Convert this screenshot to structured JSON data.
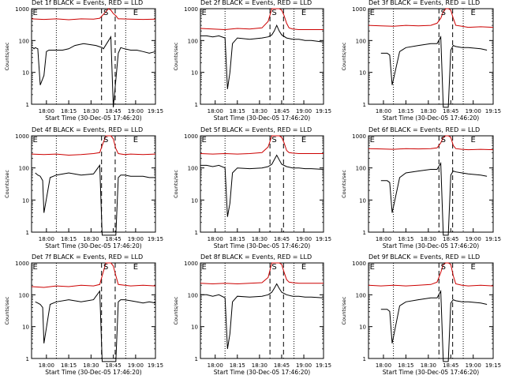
{
  "colors": {
    "events": "#000000",
    "lld": "#cc0000",
    "axis": "#000000"
  },
  "chart_data": [
    {
      "type": "line",
      "title": "Det 1f BLACK = Events, RED = LLD",
      "xlabel": "Start Time (30-Dec-05 17:46:20)",
      "ylabel": "Counts/sec",
      "y_scale": "log",
      "ylim": [
        1,
        1000
      ],
      "x_ticks": [
        "18:00",
        "18:15",
        "18:30",
        "18:45",
        "19:00",
        "19:15"
      ],
      "y_ticks": [
        "1",
        "10",
        "100",
        "1000"
      ],
      "markers": [
        "E",
        "S",
        "E"
      ],
      "series": [
        {
          "name": "Events",
          "color": "#000000",
          "x": [
            0,
            0.01,
            0.02,
            0.03,
            0.05,
            0.07,
            0.1,
            0.12,
            0.14,
            0.25,
            0.3,
            0.35,
            0.42,
            0.52,
            0.57,
            0.58,
            0.64,
            0.66,
            0.66,
            0.7,
            0.72,
            0.75,
            0.8,
            0.85,
            0.9,
            0.95,
            1.0
          ],
          "y": [
            60,
            60,
            55,
            60,
            55,
            4,
            8,
            45,
            50,
            50,
            55,
            70,
            80,
            70,
            60,
            55,
            130,
            0,
            0,
            40,
            60,
            55,
            50,
            50,
            45,
            40,
            45
          ]
        },
        {
          "name": "LLD",
          "color": "#cc0000",
          "x": [
            0,
            0.1,
            0.2,
            0.3,
            0.4,
            0.5,
            0.55,
            0.57,
            0.6,
            0.62,
            0.64,
            0.66,
            0.68,
            0.7,
            0.72,
            0.8,
            0.9,
            1.0
          ],
          "y": [
            480,
            460,
            480,
            450,
            480,
            470,
            500,
            600,
            800,
            1000,
            900,
            700,
            600,
            480,
            480,
            470,
            460,
            470
          ]
        }
      ]
    },
    {
      "type": "line",
      "title": "Det 2f BLACK = Events, RED = LLD",
      "xlabel": "Start Time (30-Dec-05 17:46:20)",
      "ylabel": "Counts/sec",
      "y_scale": "log",
      "ylim": [
        1,
        1000
      ],
      "x_ticks": [
        "18:00",
        "18:15",
        "18:30",
        "18:45",
        "19:00",
        "19:15"
      ],
      "y_ticks": [
        "1",
        "10",
        "100",
        "1000"
      ],
      "markers": [
        "E",
        "S",
        "E"
      ],
      "series": [
        {
          "name": "Events",
          "color": "#000000",
          "x": [
            0,
            0.05,
            0.1,
            0.15,
            0.2,
            0.22,
            0.24,
            0.26,
            0.3,
            0.4,
            0.5,
            0.55,
            0.58,
            0.6,
            0.62,
            0.64,
            0.66,
            0.7,
            0.75,
            0.8,
            0.85,
            0.9,
            1.0
          ],
          "y": [
            140,
            140,
            130,
            140,
            120,
            3,
            10,
            80,
            120,
            110,
            120,
            130,
            150,
            200,
            300,
            200,
            150,
            120,
            110,
            110,
            100,
            100,
            90
          ]
        },
        {
          "name": "LLD",
          "color": "#cc0000",
          "x": [
            0,
            0.1,
            0.2,
            0.3,
            0.4,
            0.5,
            0.55,
            0.58,
            0.6,
            0.62,
            0.64,
            0.66,
            0.68,
            0.7,
            0.72,
            0.75,
            0.8,
            0.9,
            1.0
          ],
          "y": [
            240,
            230,
            220,
            240,
            230,
            250,
            400,
            1000,
            1000,
            1000,
            1000,
            900,
            600,
            350,
            250,
            230,
            220,
            220,
            220
          ]
        }
      ]
    },
    {
      "type": "line",
      "title": "Det 3f BLACK = Events, RED = LLD",
      "xlabel": "Start Time (30-Dec-05 17:46:20)",
      "ylabel": "Counts/sec",
      "y_scale": "log",
      "ylim": [
        1,
        1000
      ],
      "x_ticks": [
        "18:00",
        "18:15",
        "18:30",
        "18:45",
        "19:00",
        "19:15"
      ],
      "y_ticks": [
        "1",
        "10",
        "100",
        "1000"
      ],
      "markers": [
        "E",
        "S",
        "E"
      ],
      "series": [
        {
          "name": "Events",
          "color": "#000000",
          "x": [
            0.1,
            0.15,
            0.17,
            0.19,
            0.25,
            0.3,
            0.4,
            0.5,
            0.55,
            0.58,
            0.6,
            0.64,
            0.66,
            0.68,
            0.7,
            0.75,
            0.8,
            0.9,
            0.95
          ],
          "y": [
            40,
            40,
            35,
            4,
            45,
            60,
            70,
            80,
            80,
            130,
            0,
            0,
            50,
            70,
            65,
            60,
            60,
            55,
            50
          ]
        },
        {
          "name": "LLD",
          "color": "#cc0000",
          "x": [
            0,
            0.1,
            0.2,
            0.3,
            0.4,
            0.5,
            0.55,
            0.58,
            0.6,
            0.62,
            0.64,
            0.66,
            0.68,
            0.7,
            0.75,
            0.8,
            0.9,
            1.0
          ],
          "y": [
            300,
            290,
            280,
            300,
            290,
            300,
            350,
            500,
            800,
            1000,
            1000,
            900,
            500,
            300,
            280,
            260,
            270,
            260
          ]
        }
      ]
    },
    {
      "type": "line",
      "title": "Det 4f BLACK = Events, RED = LLD",
      "xlabel": "Start Time (30-Dec-05 17:46:20)",
      "ylabel": "Counts/sec",
      "y_scale": "log",
      "ylim": [
        1,
        1000
      ],
      "x_ticks": [
        "18:00",
        "18:15",
        "18:30",
        "18:45",
        "19:00",
        "19:15"
      ],
      "y_ticks": [
        "1",
        "10",
        "100",
        "1000"
      ],
      "markers": [
        "E",
        "S",
        "E"
      ],
      "series": [
        {
          "name": "Events",
          "color": "#000000",
          "x": [
            0.03,
            0.05,
            0.07,
            0.09,
            0.1,
            0.15,
            0.2,
            0.3,
            0.4,
            0.5,
            0.55,
            0.57,
            0.58,
            0.62,
            0.66,
            0.68,
            0.7,
            0.72,
            0.75,
            0.8,
            0.85,
            0.9,
            0.95,
            1.0
          ],
          "y": [
            70,
            60,
            55,
            40,
            4,
            50,
            60,
            70,
            60,
            65,
            120,
            0,
            0,
            0,
            0,
            0,
            50,
            60,
            60,
            55,
            55,
            55,
            50,
            50
          ]
        },
        {
          "name": "LLD",
          "color": "#cc0000",
          "x": [
            0,
            0.1,
            0.2,
            0.3,
            0.4,
            0.5,
            0.55,
            0.57,
            0.6,
            0.62,
            0.64,
            0.66,
            0.68,
            0.7,
            0.75,
            0.8,
            0.9,
            1.0
          ],
          "y": [
            270,
            260,
            270,
            250,
            260,
            280,
            300,
            500,
            1000,
            1000,
            1000,
            800,
            400,
            280,
            260,
            270,
            260,
            270
          ]
        }
      ]
    },
    {
      "type": "line",
      "title": "Det 5f BLACK = Events, RED = LLD",
      "xlabel": "Start Time (30-Dec-05 17:46:20)",
      "ylabel": "Counts/sec",
      "y_scale": "log",
      "ylim": [
        1,
        1000
      ],
      "x_ticks": [
        "18:00",
        "18:15",
        "18:30",
        "18:45",
        "19:00",
        "19:15"
      ],
      "y_ticks": [
        "1",
        "10",
        "100",
        "1000"
      ],
      "markers": [
        "E",
        "S",
        "E"
      ],
      "series": [
        {
          "name": "Events",
          "color": "#000000",
          "x": [
            0,
            0.05,
            0.1,
            0.15,
            0.2,
            0.22,
            0.24,
            0.26,
            0.3,
            0.4,
            0.5,
            0.55,
            0.58,
            0.6,
            0.62,
            0.64,
            0.66,
            0.7,
            0.75,
            0.8,
            0.85,
            0.9,
            1.0
          ],
          "y": [
            120,
            120,
            110,
            120,
            100,
            3,
            8,
            70,
            100,
            95,
            100,
            110,
            130,
            180,
            250,
            180,
            130,
            110,
            100,
            100,
            95,
            95,
            90
          ]
        },
        {
          "name": "LLD",
          "color": "#cc0000",
          "x": [
            0,
            0.1,
            0.2,
            0.3,
            0.4,
            0.5,
            0.55,
            0.58,
            0.6,
            0.62,
            0.64,
            0.66,
            0.68,
            0.7,
            0.72,
            0.75,
            0.8,
            0.9,
            1.0
          ],
          "y": [
            280,
            270,
            280,
            270,
            280,
            300,
            450,
            1000,
            1000,
            1000,
            1000,
            900,
            600,
            350,
            300,
            290,
            280,
            280,
            280
          ]
        }
      ]
    },
    {
      "type": "line",
      "title": "Det 6f BLACK = Events, RED = LLD",
      "xlabel": "Start Time (30-Dec-05 17:46:20)",
      "ylabel": "Counts/sec",
      "y_scale": "log",
      "ylim": [
        1,
        1000
      ],
      "x_ticks": [
        "18:00",
        "18:15",
        "18:30",
        "18:45",
        "19:00",
        "19:15"
      ],
      "y_ticks": [
        "1",
        "10",
        "100",
        "1000"
      ],
      "markers": [
        "E",
        "S",
        "E"
      ],
      "series": [
        {
          "name": "Events",
          "color": "#000000",
          "x": [
            0.1,
            0.15,
            0.17,
            0.19,
            0.25,
            0.3,
            0.4,
            0.5,
            0.55,
            0.58,
            0.6,
            0.64,
            0.66,
            0.68,
            0.7,
            0.75,
            0.8,
            0.9,
            0.95
          ],
          "y": [
            40,
            40,
            35,
            4,
            50,
            70,
            80,
            90,
            90,
            140,
            0,
            0,
            60,
            80,
            75,
            70,
            65,
            60,
            55
          ]
        },
        {
          "name": "LLD",
          "color": "#cc0000",
          "x": [
            0,
            0.1,
            0.2,
            0.3,
            0.4,
            0.5,
            0.55,
            0.58,
            0.6,
            0.62,
            0.64,
            0.66,
            0.68,
            0.7,
            0.75,
            0.8,
            0.9,
            1.0
          ],
          "y": [
            400,
            390,
            380,
            400,
            390,
            400,
            420,
            600,
            900,
            1000,
            1000,
            900,
            500,
            400,
            380,
            370,
            380,
            370
          ]
        }
      ]
    },
    {
      "type": "line",
      "title": "Det 7f BLACK = Events, RED = LLD",
      "xlabel": "Start Time (30-Dec-05 17:46:20)",
      "ylabel": "Counts/sec",
      "y_scale": "log",
      "ylim": [
        1,
        1000
      ],
      "x_ticks": [
        "18:00",
        "18:15",
        "18:30",
        "18:45",
        "19:00",
        "19:15"
      ],
      "y_ticks": [
        "1",
        "10",
        "100",
        "1000"
      ],
      "markers": [
        "E",
        "S",
        "E"
      ],
      "series": [
        {
          "name": "Events",
          "color": "#000000",
          "x": [
            0.03,
            0.05,
            0.07,
            0.09,
            0.1,
            0.15,
            0.2,
            0.3,
            0.4,
            0.5,
            0.55,
            0.57,
            0.58,
            0.62,
            0.66,
            0.68,
            0.7,
            0.72,
            0.75,
            0.8,
            0.85,
            0.9,
            0.95,
            1.0
          ],
          "y": [
            60,
            55,
            50,
            40,
            3,
            50,
            60,
            70,
            60,
            70,
            130,
            0,
            0,
            0,
            0,
            0,
            60,
            70,
            70,
            65,
            60,
            55,
            60,
            55
          ]
        },
        {
          "name": "LLD",
          "color": "#cc0000",
          "x": [
            0,
            0.1,
            0.2,
            0.3,
            0.4,
            0.5,
            0.55,
            0.57,
            0.6,
            0.62,
            0.64,
            0.66,
            0.68,
            0.7,
            0.75,
            0.8,
            0.9,
            1.0
          ],
          "y": [
            180,
            170,
            190,
            180,
            200,
            190,
            210,
            400,
            1000,
            1000,
            1000,
            800,
            400,
            210,
            200,
            190,
            200,
            190
          ]
        }
      ]
    },
    {
      "type": "line",
      "title": "Det 8f BLACK = Events, RED = LLD",
      "xlabel": "Start Time (30-Dec-05 17:46:20)",
      "ylabel": "Counts/sec",
      "y_scale": "log",
      "ylim": [
        1,
        1000
      ],
      "x_ticks": [
        "18:00",
        "18:15",
        "18:30",
        "18:45",
        "19:00",
        "19:15"
      ],
      "y_ticks": [
        "1",
        "10",
        "100",
        "1000"
      ],
      "markers": [
        "E",
        "S",
        "E"
      ],
      "series": [
        {
          "name": "Events",
          "color": "#000000",
          "x": [
            0,
            0.05,
            0.1,
            0.15,
            0.2,
            0.22,
            0.24,
            0.26,
            0.3,
            0.4,
            0.5,
            0.55,
            0.58,
            0.6,
            0.62,
            0.64,
            0.66,
            0.7,
            0.75,
            0.8,
            0.85,
            0.9,
            1.0
          ],
          "y": [
            100,
            100,
            90,
            100,
            80,
            2,
            6,
            60,
            90,
            85,
            90,
            100,
            120,
            160,
            220,
            160,
            120,
            100,
            90,
            90,
            85,
            85,
            80
          ]
        },
        {
          "name": "LLD",
          "color": "#cc0000",
          "x": [
            0,
            0.1,
            0.2,
            0.3,
            0.4,
            0.5,
            0.55,
            0.58,
            0.6,
            0.62,
            0.64,
            0.66,
            0.68,
            0.7,
            0.72,
            0.75,
            0.8,
            0.9,
            1.0
          ],
          "y": [
            230,
            220,
            230,
            220,
            230,
            240,
            350,
            1000,
            1000,
            1000,
            1000,
            900,
            500,
            300,
            250,
            240,
            230,
            230,
            230
          ]
        }
      ]
    },
    {
      "type": "line",
      "title": "Det 9f BLACK = Events, RED = LLD",
      "xlabel": "Start Time (30-Dec-05 17:46:20)",
      "ylabel": "Counts/sec",
      "y_scale": "log",
      "ylim": [
        1,
        1000
      ],
      "x_ticks": [
        "18:00",
        "18:15",
        "18:30",
        "18:45",
        "19:00",
        "19:15"
      ],
      "y_ticks": [
        "1",
        "10",
        "100",
        "1000"
      ],
      "markers": [
        "E",
        "S",
        "E"
      ],
      "series": [
        {
          "name": "Events",
          "color": "#000000",
          "x": [
            0.1,
            0.15,
            0.17,
            0.19,
            0.25,
            0.3,
            0.4,
            0.5,
            0.55,
            0.58,
            0.6,
            0.64,
            0.66,
            0.68,
            0.7,
            0.75,
            0.8,
            0.9,
            0.95
          ],
          "y": [
            35,
            35,
            30,
            3,
            45,
            60,
            70,
            80,
            80,
            130,
            0,
            0,
            55,
            70,
            65,
            60,
            60,
            55,
            50
          ]
        },
        {
          "name": "LLD",
          "color": "#cc0000",
          "x": [
            0,
            0.1,
            0.2,
            0.3,
            0.4,
            0.5,
            0.55,
            0.58,
            0.6,
            0.62,
            0.64,
            0.66,
            0.68,
            0.7,
            0.75,
            0.8,
            0.9,
            1.0
          ],
          "y": [
            200,
            190,
            200,
            190,
            200,
            210,
            250,
            500,
            900,
            1000,
            1000,
            900,
            400,
            220,
            200,
            190,
            200,
            190
          ]
        }
      ]
    }
  ]
}
